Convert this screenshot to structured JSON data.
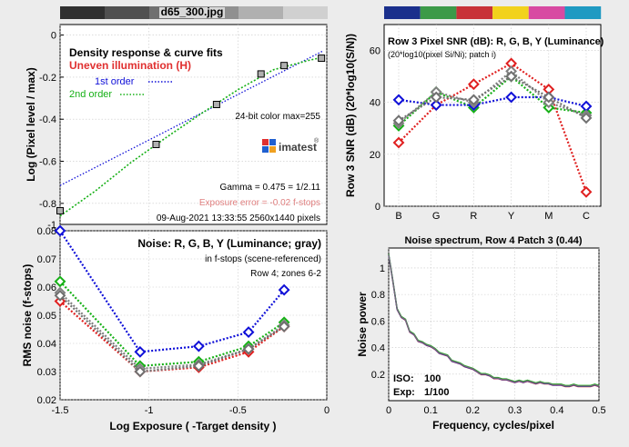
{
  "figure_title": "d65_300.jpg",
  "colors": {
    "red": "#e02020",
    "green": "#16b016",
    "blue": "#1010d8",
    "gray": "#808080",
    "yellow": "#f0e020",
    "magenta": "#e050b0",
    "cyan": "#10a0c0",
    "legend_red": "#e03030",
    "exposure_error": "#e08080",
    "page_bg": "#ececec"
  },
  "chart_data": [
    {
      "id": "density",
      "type": "line",
      "title": "Density response & curve fits",
      "subtitle": "Uneven illumination (H)",
      "xlabel": "",
      "ylabel": "Log (Pixel level / max)",
      "xlim": [
        -1.5,
        0
      ],
      "ylim": [
        -0.9,
        0.05
      ],
      "x_ticks": [
        -1.5,
        -1,
        -0.5,
        0
      ],
      "y_ticks": [
        0,
        -0.2,
        -0.4,
        -0.6,
        -0.8
      ],
      "y_tick_labels": [
        "0",
        "-0.2",
        "-0.4",
        "-0.6",
        "-0.8"
      ],
      "extra_y_label": "-1",
      "points": {
        "x": [
          -1.5,
          -0.96,
          -0.62,
          -0.37,
          -0.24,
          -0.03
        ],
        "y": [
          -0.835,
          -0.52,
          -0.33,
          -0.185,
          -0.145,
          -0.11
        ]
      },
      "series": [
        {
          "name": "1st order",
          "x": [
            -1.5,
            -0.02
          ],
          "y": [
            -0.715,
            -0.075
          ]
        },
        {
          "name": "2nd order",
          "x": [
            -1.5,
            -1.3,
            -1.1,
            -0.9,
            -0.7,
            -0.5,
            -0.3,
            -0.1,
            -0.02
          ],
          "y": [
            -0.86,
            -0.74,
            -0.605,
            -0.485,
            -0.37,
            -0.26,
            -0.165,
            -0.12,
            -0.105
          ]
        }
      ],
      "annotations": {
        "color_info": "24-bit color  max=255",
        "gamma": "Gamma = 0.475 = 1/2.11",
        "exposure_error": "Exposure error = -0.02 f-stops",
        "date": "09-Aug-2021 13:33:55   2560x1440 pixels",
        "logo_text": "imatest"
      }
    },
    {
      "id": "snr",
      "type": "line",
      "title": "Row 3 Pixel SNR (dB): R, G, B, Y (Luminance)",
      "subtitle": "(20*log10(pixel Si/Ni); patch i)",
      "xlabel": "",
      "ylabel": "Row 3 SNR (dB) (20*log10(S/N))",
      "categories": [
        "B",
        "G",
        "R",
        "Y",
        "M",
        "C"
      ],
      "ylim": [
        0,
        70
      ],
      "y_ticks": [
        0,
        20,
        40,
        60
      ],
      "series": [
        {
          "name": "R",
          "values": [
            24.5,
            39,
            47,
            55,
            45,
            5.5
          ]
        },
        {
          "name": "G",
          "values": [
            31,
            44,
            38,
            50,
            38,
            36
          ]
        },
        {
          "name": "B",
          "values": [
            41,
            39,
            39,
            42,
            42,
            38.5
          ]
        },
        {
          "name": "Y",
          "values": [
            32,
            44,
            40,
            52,
            40,
            35
          ]
        },
        {
          "name": "Gray",
          "values": [
            33,
            42,
            41,
            50,
            42,
            34
          ]
        }
      ]
    },
    {
      "id": "noise",
      "type": "line",
      "title": "Noise: R, G, B, Y (Luminance; gray)",
      "subtitle": "in f-stops (scene-referenced)",
      "note": "Row 4; zones 6-2",
      "xlabel": "Log Exposure ( -Target density )",
      "ylabel": "RMS noise (f-stops)",
      "xlim": [
        -1.5,
        0
      ],
      "ylim": [
        0.02,
        0.08
      ],
      "x_ticks": [
        -1.5,
        -1,
        -0.5,
        0
      ],
      "y_ticks": [
        0.02,
        0.03,
        0.04,
        0.05,
        0.06,
        0.07,
        0.08
      ],
      "x": [
        -1.5,
        -1.05,
        -0.72,
        -0.44,
        -0.24
      ],
      "series": [
        {
          "name": "R",
          "values": [
            0.055,
            0.03,
            0.0315,
            0.037,
            0.046
          ]
        },
        {
          "name": "G",
          "values": [
            0.062,
            0.032,
            0.0335,
            0.039,
            0.0475
          ]
        },
        {
          "name": "B",
          "values": [
            0.08,
            0.037,
            0.039,
            0.044,
            0.059
          ]
        },
        {
          "name": "Y",
          "values": [
            0.058,
            0.031,
            0.0325,
            0.038,
            0.0465
          ]
        },
        {
          "name": "Gray",
          "values": [
            0.057,
            0.03,
            0.032,
            0.038,
            0.046
          ]
        }
      ]
    },
    {
      "id": "spectrum",
      "type": "line",
      "title": "Noise spectrum, Row 4 Patch 3 (0.44)",
      "xlabel": "Frequency, cycles/pixel",
      "ylabel": "Noise power",
      "xlim": [
        0,
        0.5
      ],
      "ylim": [
        0,
        1.15
      ],
      "x_ticks": [
        0,
        0.1,
        0.2,
        0.3,
        0.4,
        0.5
      ],
      "y_ticks": [
        0.2,
        0.4,
        0.6,
        0.8,
        1
      ],
      "iso_label": "ISO:",
      "iso_value": "100",
      "exp_label": "Exp:",
      "exp_value": "1/100",
      "x": [
        0,
        0.01,
        0.02,
        0.03,
        0.04,
        0.05,
        0.06,
        0.07,
        0.08,
        0.09,
        0.1,
        0.11,
        0.12,
        0.13,
        0.14,
        0.15,
        0.16,
        0.17,
        0.18,
        0.19,
        0.2,
        0.21,
        0.22,
        0.23,
        0.24,
        0.25,
        0.26,
        0.27,
        0.28,
        0.29,
        0.3,
        0.31,
        0.32,
        0.33,
        0.34,
        0.35,
        0.36,
        0.37,
        0.38,
        0.39,
        0.4,
        0.41,
        0.42,
        0.43,
        0.44,
        0.45,
        0.46,
        0.47,
        0.48,
        0.49,
        0.5
      ],
      "series": [
        {
          "name": "Y",
          "values": [
            1.1,
            0.9,
            0.69,
            0.63,
            0.61,
            0.52,
            0.5,
            0.45,
            0.44,
            0.42,
            0.41,
            0.39,
            0.36,
            0.35,
            0.34,
            0.3,
            0.29,
            0.28,
            0.26,
            0.25,
            0.24,
            0.22,
            0.2,
            0.2,
            0.19,
            0.17,
            0.17,
            0.16,
            0.16,
            0.15,
            0.14,
            0.15,
            0.14,
            0.15,
            0.14,
            0.13,
            0.14,
            0.13,
            0.13,
            0.12,
            0.12,
            0.12,
            0.11,
            0.11,
            0.12,
            0.11,
            0.11,
            0.11,
            0.11,
            0.12,
            0.11
          ]
        }
      ]
    }
  ]
}
